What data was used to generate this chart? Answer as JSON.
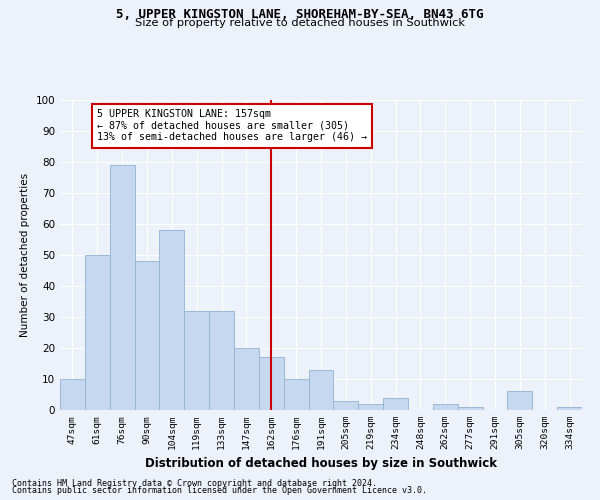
{
  "title1": "5, UPPER KINGSTON LANE, SHOREHAM-BY-SEA, BN43 6TG",
  "title2": "Size of property relative to detached houses in Southwick",
  "xlabel": "Distribution of detached houses by size in Southwick",
  "ylabel": "Number of detached properties",
  "categories": [
    "47sqm",
    "61sqm",
    "76sqm",
    "90sqm",
    "104sqm",
    "119sqm",
    "133sqm",
    "147sqm",
    "162sqm",
    "176sqm",
    "191sqm",
    "205sqm",
    "219sqm",
    "234sqm",
    "248sqm",
    "262sqm",
    "277sqm",
    "291sqm",
    "305sqm",
    "320sqm",
    "334sqm"
  ],
  "values": [
    10,
    50,
    79,
    48,
    58,
    32,
    32,
    20,
    17,
    10,
    13,
    3,
    2,
    4,
    0,
    2,
    1,
    0,
    6,
    0,
    1
  ],
  "bar_color": "#c5d8ef",
  "bar_edge_color": "#90b4d4",
  "property_line_x": 8.0,
  "annotation_text": "5 UPPER KINGSTON LANE: 157sqm\n← 87% of detached houses are smaller (305)\n13% of semi-detached houses are larger (46) →",
  "annotation_box_color": "#ffffff",
  "annotation_box_edge": "#cc0000",
  "line_color": "#cc0000",
  "footer1": "Contains HM Land Registry data © Crown copyright and database right 2024.",
  "footer2": "Contains public sector information licensed under the Open Government Licence v3.0.",
  "background_color": "#edf2fa",
  "grid_color": "#ffffff",
  "ylim": [
    0,
    100
  ],
  "yticks": [
    0,
    10,
    20,
    30,
    40,
    50,
    60,
    70,
    80,
    90,
    100
  ]
}
